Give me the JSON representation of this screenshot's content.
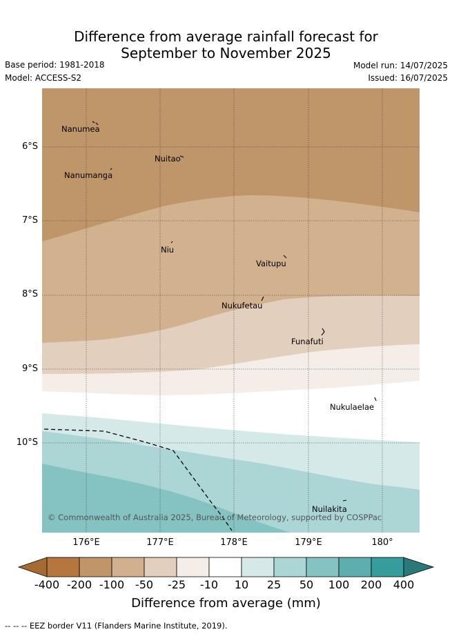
{
  "header": {
    "title_line1": "Difference from average rainfall forecast for",
    "title_line2": "September to November 2025",
    "base_period": "Base period: 1981-2018",
    "model": "Model: ACCESS-S2",
    "model_run": "Model run: 14/07/2025",
    "issued": "Issued: 16/07/2025"
  },
  "map": {
    "lat_ticks": [
      "6°S",
      "7°S",
      "8°S",
      "9°S",
      "10°S"
    ],
    "lon_ticks": [
      "176°E",
      "177°E",
      "178°E",
      "179°E",
      "180°"
    ],
    "places": {
      "nanumea": "Nanumea",
      "nuitao": "Nuitao",
      "nanumanga": "Nanumanga",
      "niu": "Niu",
      "vaitupu": "Vaitupu",
      "nukufetau": "Nukufetau",
      "funafuti": "Funafuti",
      "nukulaelae": "Nukulaelae",
      "nuilakita": "Nuilakita"
    },
    "copyright": "© Commonwealth of Australia 2025, Bureau of Meteorology, supported by COSPPac"
  },
  "colorbar": {
    "labels": [
      "-400",
      "-200",
      "-100",
      "-50",
      "-25",
      "-10",
      "10",
      "25",
      "50",
      "100",
      "200",
      "400"
    ],
    "colors": [
      "#a66b33",
      "#b5773f",
      "#c0956a",
      "#d2b08f",
      "#e2cfbe",
      "#f4ede8",
      "#ffffff",
      "#d5e9e9",
      "#acd6d6",
      "#85c2c2",
      "#5eaeae",
      "#369c9c",
      "#2a7878"
    ],
    "title": "Difference from average (mm)"
  },
  "footer": {
    "legend_text": "--  --  -- EEZ border V11 (Flanders Marine Institute, 2019)."
  }
}
